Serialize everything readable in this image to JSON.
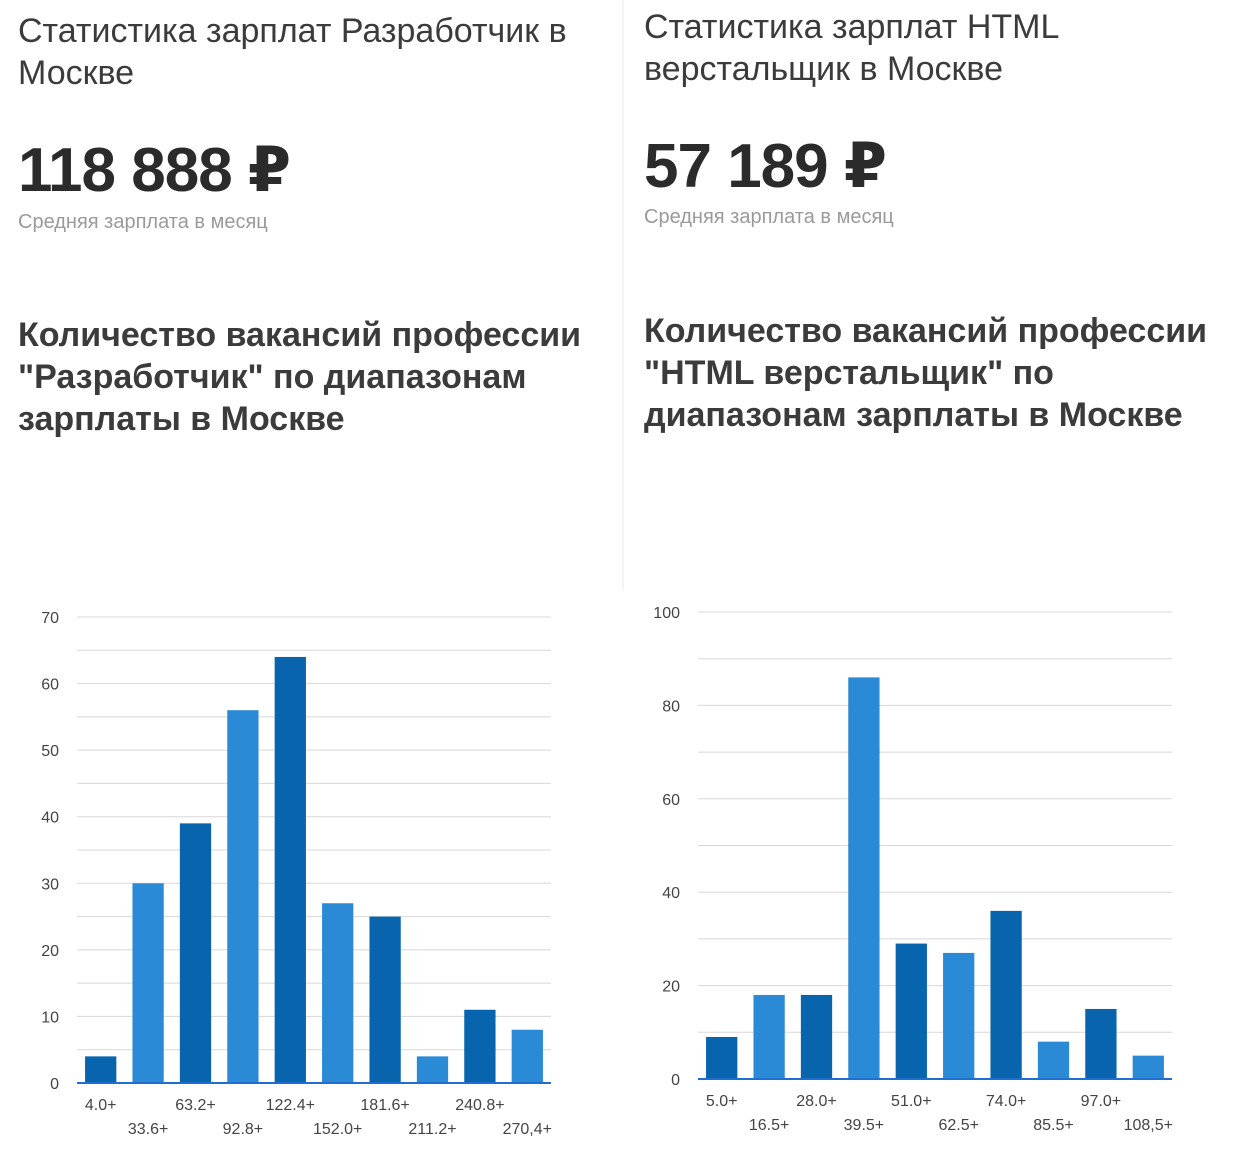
{
  "left": {
    "title": "Статистика зарплат Разработчик в Москве",
    "salary": "118 888 ₽",
    "salary_caption": "Средняя зарплата в месяц",
    "subtitle": "Количество вакансий профессии \"Разработчик\" по диапазонам зарплаты в Москве"
  },
  "right": {
    "title": "Статистика зарплат HTML верстальщик в Москве",
    "salary": "57 189 ₽",
    "salary_caption": "Средняя зарплата в месяц",
    "subtitle": "Количество вакансий профессии \"HTML верстальщик\" по диапазонам зарплаты в Москве"
  },
  "colors": {
    "dark_bar": "#0865ad",
    "light_bar": "#2b8ad6",
    "axis": "#1e6fd0",
    "grid": "#d8d8d8"
  },
  "chart_data": [
    {
      "type": "bar",
      "title": "Количество вакансий профессии \"Разработчик\" по диапазонам зарплаты в Москве",
      "categories": [
        "4.0+",
        "33.6+",
        "63.2+",
        "92.8+",
        "122.4+",
        "152.0+",
        "181.6+",
        "211.2+",
        "240.8+",
        "270,4+"
      ],
      "values": [
        4,
        30,
        39,
        56,
        64,
        27,
        25,
        4,
        11,
        8
      ],
      "ylim": [
        0,
        70
      ],
      "yticks": [
        0,
        10,
        20,
        30,
        40,
        50,
        60,
        70
      ],
      "xlabel": "",
      "ylabel": "",
      "grid": true
    },
    {
      "type": "bar",
      "title": "Количество вакансий профессии \"HTML верстальщик\" по диапазонам зарплаты в Москве",
      "categories": [
        "5.0+",
        "16.5+",
        "28.0+",
        "39.5+",
        "51.0+",
        "62.5+",
        "74.0+",
        "85.5+",
        "97.0+",
        "108,5+"
      ],
      "values": [
        9,
        18,
        18,
        86,
        29,
        27,
        36,
        8,
        15,
        5
      ],
      "ylim": [
        0,
        100
      ],
      "yticks": [
        0,
        20,
        40,
        60,
        80,
        100
      ],
      "xlabel": "",
      "ylabel": "",
      "grid": true
    }
  ]
}
